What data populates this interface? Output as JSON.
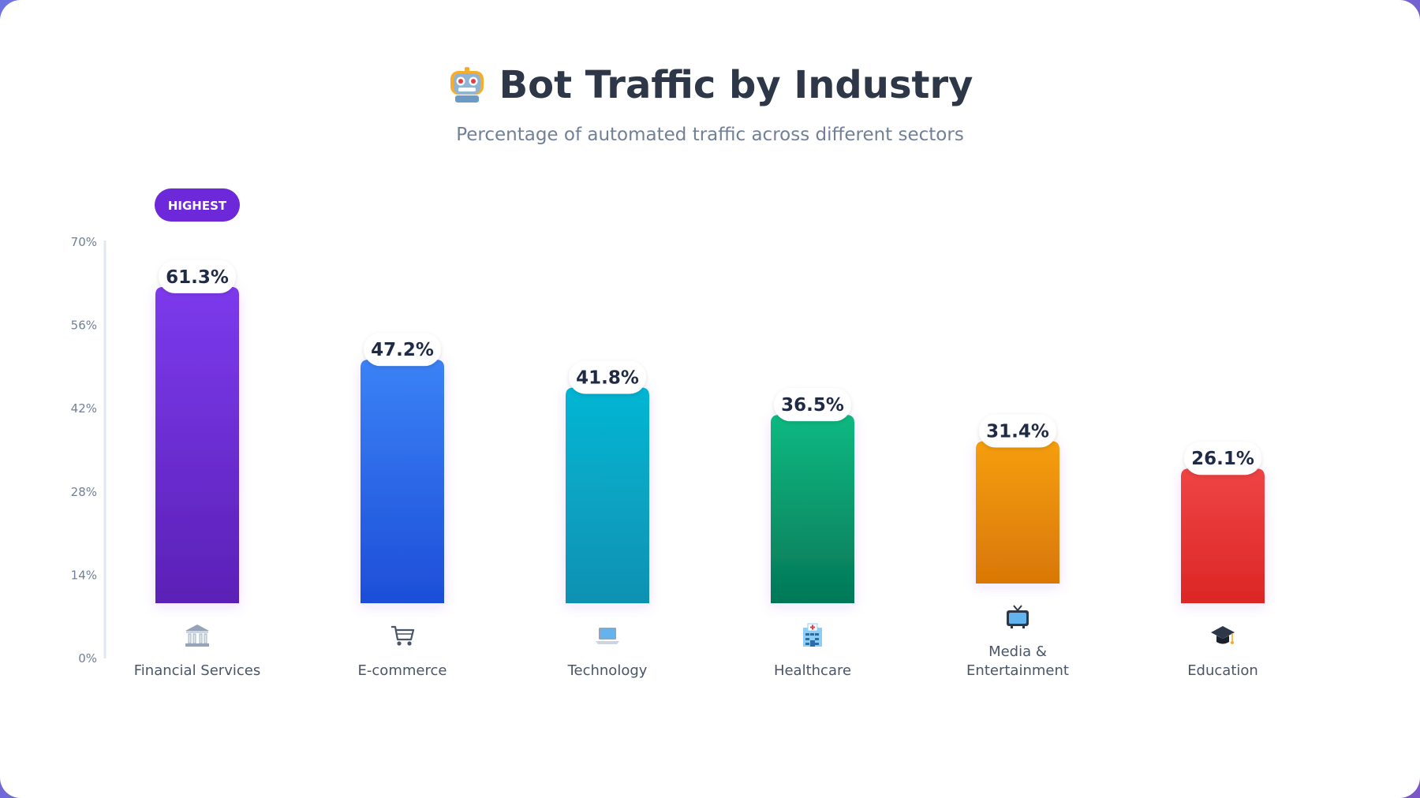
{
  "header": {
    "title": "Bot Traffic by Industry",
    "subtitle": "Percentage of automated traffic across different sectors",
    "icon": "robot-icon"
  },
  "chart_data": {
    "type": "bar",
    "categories": [
      "Financial Services",
      "E-commerce",
      "Technology",
      "Healthcare",
      "Media & Entertainment",
      "Education"
    ],
    "category_lines": [
      [
        "Financial Services"
      ],
      [
        "E-commerce"
      ],
      [
        "Technology"
      ],
      [
        "Healthcare"
      ],
      [
        "Media &",
        "Entertainment"
      ],
      [
        "Education"
      ]
    ],
    "values": [
      61.3,
      47.2,
      41.8,
      36.5,
      31.4,
      26.1
    ],
    "value_labels": [
      "61.3%",
      "47.2%",
      "41.8%",
      "36.5%",
      "31.4%",
      "26.1%"
    ],
    "icons": [
      "bank-icon",
      "shopping-cart-icon",
      "laptop-icon",
      "hospital-icon",
      "television-icon",
      "graduation-cap-icon"
    ],
    "colors": [
      [
        "#7c3aed",
        "#5b21b6"
      ],
      [
        "#3b82f6",
        "#1d4ed8"
      ],
      [
        "#06b6d4",
        "#0891b2"
      ],
      [
        "#10b981",
        "#047857"
      ],
      [
        "#f59e0b",
        "#d97706"
      ],
      [
        "#ef4444",
        "#dc2626"
      ]
    ],
    "yticks": [
      0,
      14,
      28,
      42,
      56,
      70
    ],
    "ytick_labels": [
      "0%",
      "14%",
      "28%",
      "42%",
      "56%",
      "70%"
    ],
    "ylim": [
      0,
      70
    ],
    "highlight": {
      "index": 0,
      "label": "HIGHEST",
      "color": "#6d28d9"
    },
    "title": "Bot Traffic by Industry",
    "subtitle": "Percentage of automated traffic across different sectors",
    "xlabel": "",
    "ylabel": "",
    "grid": false,
    "legend": "none"
  }
}
